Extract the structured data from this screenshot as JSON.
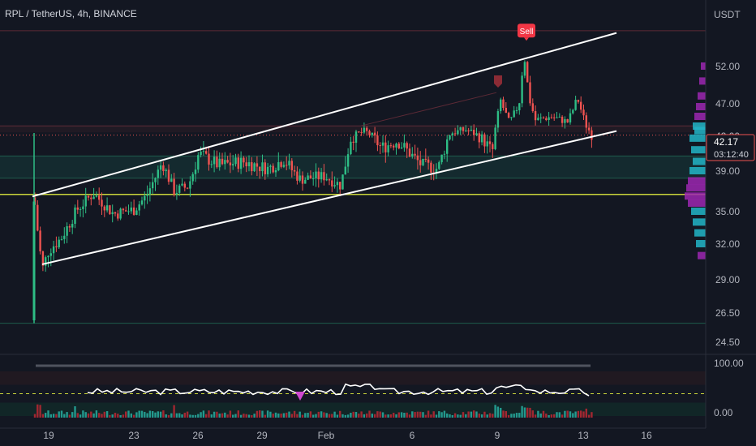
{
  "header": {
    "title": "RPL / TetherUS, 4h, BINANCE"
  },
  "chart_data": {
    "type": "candlestick",
    "title": "RPL / TetherUS, 4h, BINANCE",
    "currency": "USDT",
    "price_axis": {
      "ticks": [
        "52.00",
        "47.00",
        "42.00",
        "39.00",
        "35.00",
        "32.00",
        "29.00",
        "26.50",
        "24.50"
      ],
      "ylim": [
        23.5,
        57
      ]
    },
    "current_price": {
      "value": "42.17",
      "countdown": "03:12:40",
      "price": 42.17
    },
    "time_axis": {
      "labels": [
        "19",
        "23",
        "26",
        "29",
        "Feb",
        "6",
        "9",
        "13",
        "16"
      ]
    },
    "candles": {
      "description_points": [
        {
          "t": "19",
          "price": 33.0
        },
        {
          "t": "19",
          "price": 29.8
        },
        {
          "t": "23",
          "price": 35.5
        },
        {
          "t": "23",
          "price": 38.5
        },
        {
          "t": "26",
          "price": 39.0
        },
        {
          "t": "29",
          "price": 38.8
        },
        {
          "t": "Feb",
          "price": 37.8
        },
        {
          "t": "Feb",
          "price": 41.5
        },
        {
          "t": "6",
          "price": 39.0
        },
        {
          "t": "6",
          "price": 42.5
        },
        {
          "t": "9",
          "price": 40.5
        },
        {
          "t": "9",
          "price": 48.5
        },
        {
          "t": "9",
          "price": 53.5
        },
        {
          "t": "13",
          "price": 44.5
        },
        {
          "t": "13",
          "price": 42.17
        }
      ]
    },
    "channel_lines": [
      {
        "name": "upper",
        "from": {
          "t": "19",
          "price": 36.5
        },
        "to": {
          "t": "16",
          "price": 56.5
        }
      },
      {
        "name": "lower",
        "from": {
          "t": "19",
          "price": 30.3
        },
        "to": {
          "t": "16",
          "price": 42.8
        }
      }
    ],
    "horizontal_lines": [
      {
        "price": 36.7,
        "color": "#c9d43b"
      },
      {
        "price": 56.8,
        "color": "#5d2a36"
      },
      {
        "price": 43.6,
        "color": "#5d2a36"
      },
      {
        "price": 40.3,
        "color": "#1e5b4d"
      },
      {
        "price": 38.3,
        "color": "#1e5b4d"
      },
      {
        "price": 25.8,
        "color": "#1e5b4d"
      }
    ],
    "signals": [
      {
        "label": "Sell",
        "t": "9",
        "price": 53.6
      }
    ],
    "oscillator": {
      "ticks": [
        "100.00",
        "0.00"
      ],
      "ylim": [
        0,
        100
      ]
    },
    "colors": {
      "background": "#131722",
      "up": "#26a69a",
      "up_bright": "#2ebd85",
      "down": "#ef5350",
      "sell_badge": "#f23645",
      "volume_profile_cyan": "#22b5c7",
      "volume_profile_purple": "#9c27b0",
      "oscillator_line": "#ffffff"
    },
    "grid": false
  }
}
